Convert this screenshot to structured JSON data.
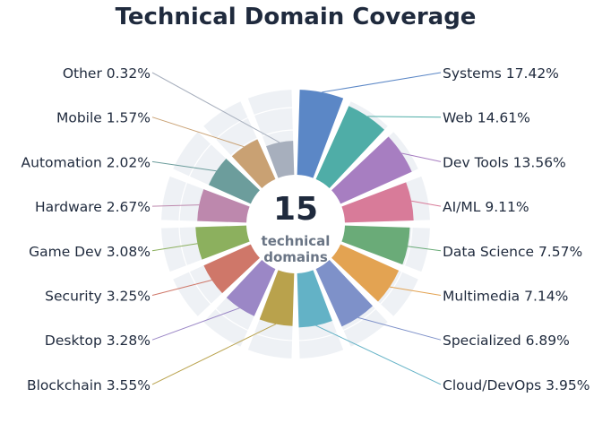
{
  "chart_data": {
    "type": "radial-bar",
    "title": "Technical Domain Coverage",
    "center": {
      "value": "15",
      "line1": "technical",
      "line2": "domains"
    },
    "unit": "%",
    "series": [
      {
        "label": "Systems",
        "value": 17.42,
        "display": "17.42%",
        "color": "#5b87c6",
        "side": "right"
      },
      {
        "label": "Web",
        "value": 14.61,
        "display": "14.61%",
        "color": "#4fada7",
        "side": "right"
      },
      {
        "label": "Dev Tools",
        "value": 13.56,
        "display": "13.56%",
        "color": "#a77ec1",
        "side": "right"
      },
      {
        "label": "AI/ML",
        "value": 9.11,
        "display": "9.11%",
        "color": "#d87b99",
        "side": "right"
      },
      {
        "label": "Data Science",
        "value": 7.57,
        "display": "7.57%",
        "color": "#6aab78",
        "side": "right"
      },
      {
        "label": "Multimedia",
        "value": 7.14,
        "display": "7.14%",
        "color": "#e3a352",
        "side": "right"
      },
      {
        "label": "Specialized",
        "value": 6.89,
        "display": "6.89%",
        "color": "#7e91c9",
        "side": "right"
      },
      {
        "label": "Cloud/DevOps",
        "value": 3.95,
        "display": "3.95%",
        "color": "#63b2c6",
        "side": "right"
      },
      {
        "label": "Blockchain",
        "value": 3.55,
        "display": "3.55%",
        "color": "#b9a24c",
        "side": "left"
      },
      {
        "label": "Desktop",
        "value": 3.28,
        "display": "3.28%",
        "color": "#9b87c6",
        "side": "left"
      },
      {
        "label": "Security",
        "value": 3.25,
        "display": "3.25%",
        "color": "#cf7769",
        "side": "left"
      },
      {
        "label": "Game Dev",
        "value": 3.08,
        "display": "3.08%",
        "color": "#8cb05e",
        "side": "left"
      },
      {
        "label": "Hardware",
        "value": 2.67,
        "display": "2.67%",
        "color": "#bd88ad",
        "side": "left"
      },
      {
        "label": "Automation",
        "value": 2.02,
        "display": "2.02%",
        "color": "#6c9d9c",
        "side": "left"
      },
      {
        "label": "Mobile",
        "value": 1.57,
        "display": "1.57%",
        "color": "#c9a173",
        "side": "left"
      },
      {
        "label": "Other",
        "value": 0.32,
        "display": "0.32%",
        "color": "#a7afbd",
        "side": "left"
      }
    ]
  }
}
